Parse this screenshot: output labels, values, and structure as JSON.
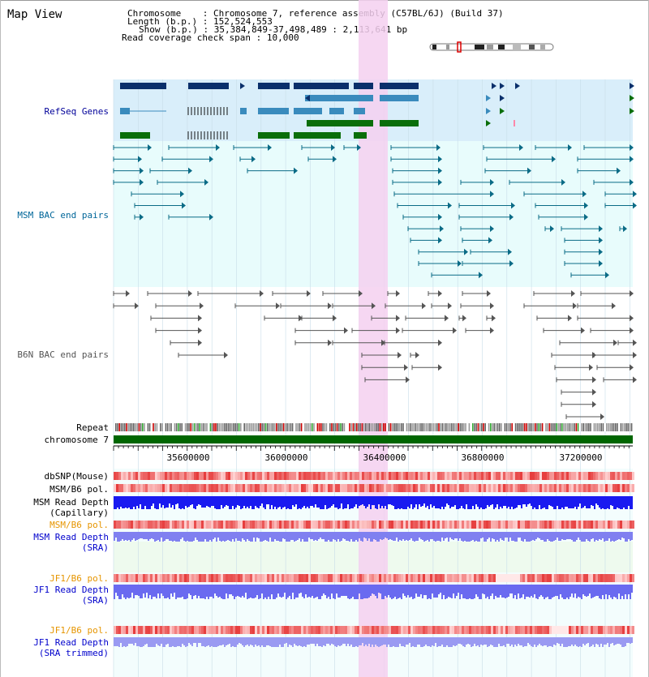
{
  "page": {
    "title": "Map View"
  },
  "info": {
    "chromosome_key": "Chromosome",
    "chromosome_val": "Chromosome 7, reference assembly (C57BL/6J) (Build 37)",
    "length_key": "Length (b.p.)",
    "length_val": "152,524,553",
    "show_key": "Show (b.p.)",
    "show_val": "35,384,849-37,498,489 : 2,113,641 bp",
    "coverage_key": "Read coverage check span",
    "coverage_val": "10,000"
  },
  "tracks": {
    "refseq": "RefSeq Genes",
    "msm_bac": "MSM BAC end pairs",
    "b6n_bac": "B6N BAC end pairs",
    "repeat": "Repeat",
    "chromosome": "chromosome 7",
    "dbsnp": "dbSNP(Mouse)",
    "msm_b6_pol": "MSM/B6 pol.",
    "msm_depth_cap_1": "MSM Read Depth",
    "msm_depth_cap_2": "(Capillary)",
    "msm_b6_pol_sra": "MSM/B6 pol.",
    "msm_depth_sra_1": "MSM Read Depth",
    "msm_depth_sra_2": "(SRA)",
    "jf1_b6_pol": "JF1/B6 pol.",
    "jf1_depth_1": "JF1 Read Depth",
    "jf1_depth_2": "(SRA)",
    "jf1_b6_pol_trim": "JF1/B6 pol.",
    "jf1_depth_trim_1": "JF1 Read Depth",
    "jf1_depth_trim_2": "(SRA trimmed)"
  },
  "axis": {
    "ticks": [
      "35600000",
      "36000000",
      "36400000",
      "36800000",
      "37200000"
    ]
  },
  "colors": {
    "refseq_dark": "#0a2f6b",
    "refseq_mid": "#3a8bbd",
    "refseq_green": "#0a6e0a",
    "msm_bg": "#e5fafa",
    "refseq_bg": "#d9eefa",
    "highlight": "#f5d5f2",
    "chromosome_bar": "#006600"
  }
}
